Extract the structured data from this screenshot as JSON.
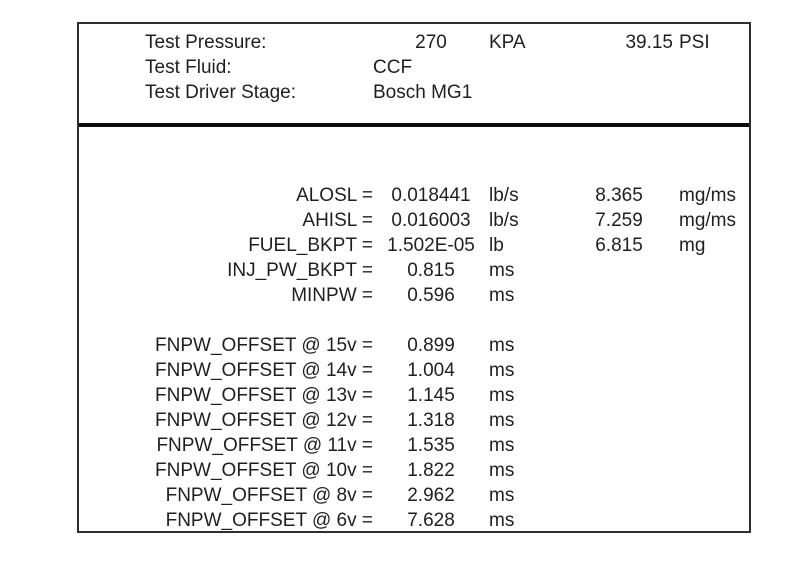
{
  "colors": {
    "background": "#ffffff",
    "text": "#1f1f1f",
    "box_border": "#2e2e2e",
    "divider": "#0d0d0d"
  },
  "header": {
    "rows": [
      {
        "label": "Test Pressure:",
        "value": "270",
        "unit": "",
        "value2": "39.15",
        "unit2": "PSI"
      },
      {
        "label": "Test Fluid:",
        "value": "CCF",
        "unit": "",
        "value2": "",
        "unit2": ""
      },
      {
        "label": "Test Driver Stage:",
        "value": "Bosch MG1",
        "unit": "",
        "value2": "",
        "unit2": ""
      }
    ],
    "pressure_unit": "KPA"
  },
  "parameters": {
    "rows": [
      {
        "label": "ALOSL =",
        "value": "0.018441",
        "unit": "lb/s",
        "value2": "8.365",
        "unit2": "mg/ms"
      },
      {
        "label": "AHISL =",
        "value": "0.016003",
        "unit": "lb/s",
        "value2": "7.259",
        "unit2": "mg/ms"
      },
      {
        "label": "FUEL_BKPT =",
        "value": "1.502E-05",
        "unit": "lb",
        "value2": "6.815",
        "unit2": "mg"
      },
      {
        "label": "INJ_PW_BKPT =",
        "value": "0.815",
        "unit": "ms",
        "value2": "",
        "unit2": ""
      },
      {
        "label": "MINPW =",
        "value": "0.596",
        "unit": "ms",
        "value2": "",
        "unit2": ""
      },
      {
        "label": "FNPW_OFFSET @ 15v =",
        "value": "0.899",
        "unit": "ms",
        "value2": "",
        "unit2": ""
      },
      {
        "label": "FNPW_OFFSET @ 14v =",
        "value": "1.004",
        "unit": "ms",
        "value2": "",
        "unit2": ""
      },
      {
        "label": "FNPW_OFFSET @ 13v =",
        "value": "1.145",
        "unit": "ms",
        "value2": "",
        "unit2": ""
      },
      {
        "label": "FNPW_OFFSET @ 12v =",
        "value": "1.318",
        "unit": "ms",
        "value2": "",
        "unit2": ""
      },
      {
        "label": "FNPW_OFFSET @ 11v =",
        "value": "1.535",
        "unit": "ms",
        "value2": "",
        "unit2": ""
      },
      {
        "label": "FNPW_OFFSET @ 10v =",
        "value": "1.822",
        "unit": "ms",
        "value2": "",
        "unit2": ""
      },
      {
        "label": "FNPW_OFFSET @ 8v =",
        "value": "2.962",
        "unit": "ms",
        "value2": "",
        "unit2": ""
      },
      {
        "label": "FNPW_OFFSET @ 6v =",
        "value": "7.628",
        "unit": "ms",
        "value2": "",
        "unit2": ""
      }
    ]
  }
}
